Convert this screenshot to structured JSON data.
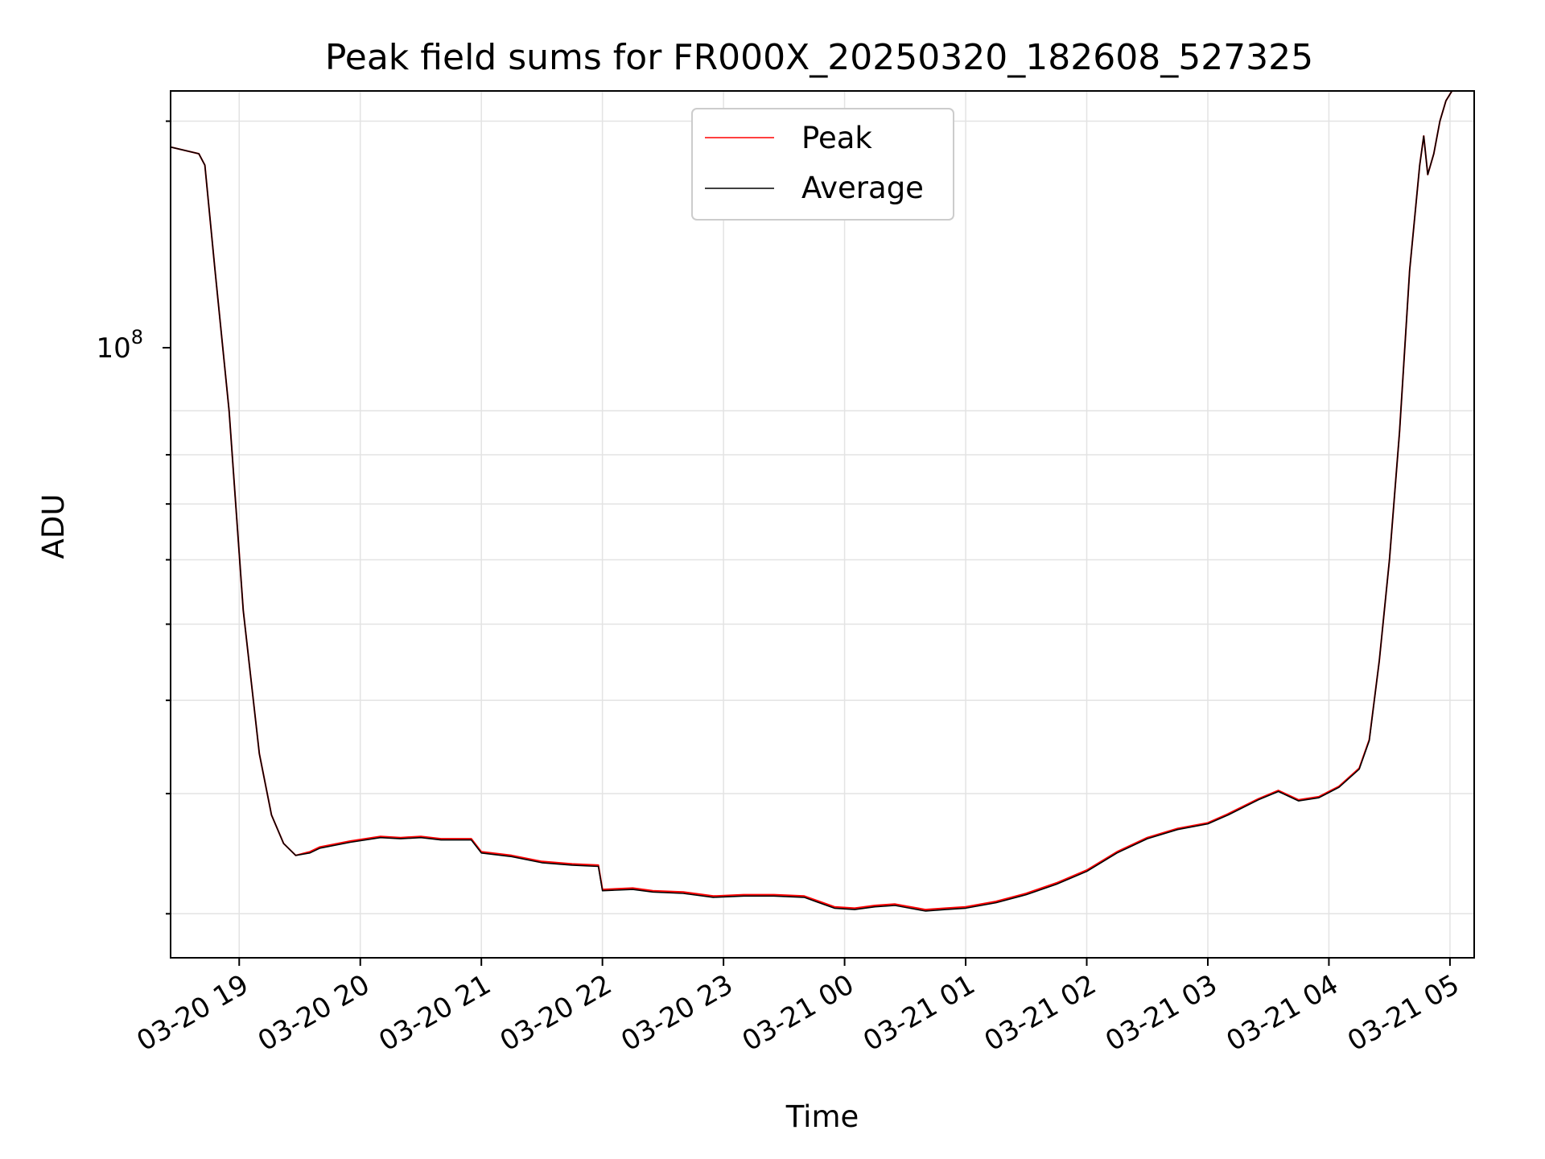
{
  "chart_data": {
    "type": "line",
    "title": "Peak field sums for FR000X_20250320_182608_527325",
    "xlabel": "Time",
    "ylabel": "ADU",
    "y_scale": "log",
    "y_tick_label": {
      "base": "10",
      "exponent": "8",
      "value": 100000000
    },
    "ylim": [
      27000000,
      215000000
    ],
    "xlim": [
      "2025-03-20 18:26",
      "2025-03-21 05:12"
    ],
    "x_tick_labels": [
      "03-20 19",
      "03-20 20",
      "03-20 21",
      "03-20 22",
      "03-20 23",
      "03-21 00",
      "03-21 01",
      "03-21 02",
      "03-21 03",
      "03-21 04",
      "03-21 05"
    ],
    "x_ticks": [
      "2025-03-20 19:00",
      "2025-03-20 20:00",
      "2025-03-20 21:00",
      "2025-03-20 22:00",
      "2025-03-20 23:00",
      "2025-03-21 00:00",
      "2025-03-21 01:00",
      "2025-03-21 02:00",
      "2025-03-21 03:00",
      "2025-03-21 04:00",
      "2025-03-21 05:00"
    ],
    "grid": true,
    "legend": {
      "placement": "top-center"
    },
    "series": [
      {
        "name": "Peak",
        "color": "#ff0000",
        "x": [
          "2025-03-20 18:26",
          "2025-03-20 18:40",
          "2025-03-20 18:43",
          "2025-03-20 18:48",
          "2025-03-20 18:55",
          "2025-03-20 19:02",
          "2025-03-20 19:10",
          "2025-03-20 19:16",
          "2025-03-20 19:22",
          "2025-03-20 19:28",
          "2025-03-20 19:35",
          "2025-03-20 19:40",
          "2025-03-20 19:55",
          "2025-03-20 20:10",
          "2025-03-20 20:20",
          "2025-03-20 20:30",
          "2025-03-20 20:40",
          "2025-03-20 20:55",
          "2025-03-20 21:00",
          "2025-03-20 21:15",
          "2025-03-20 21:30",
          "2025-03-20 21:45",
          "2025-03-20 21:58",
          "2025-03-20 22:00",
          "2025-03-20 22:15",
          "2025-03-20 22:25",
          "2025-03-20 22:40",
          "2025-03-20 22:55",
          "2025-03-20 23:10",
          "2025-03-20 23:25",
          "2025-03-20 23:40",
          "2025-03-20 23:55",
          "2025-03-21 00:05",
          "2025-03-21 00:15",
          "2025-03-21 00:25",
          "2025-03-21 00:40",
          "2025-03-21 00:50",
          "2025-03-21 01:00",
          "2025-03-21 01:15",
          "2025-03-21 01:30",
          "2025-03-21 01:45",
          "2025-03-21 02:00",
          "2025-03-21 02:15",
          "2025-03-21 02:30",
          "2025-03-21 02:45",
          "2025-03-21 03:00",
          "2025-03-21 03:10",
          "2025-03-21 03:25",
          "2025-03-21 03:35",
          "2025-03-21 03:45",
          "2025-03-21 03:55",
          "2025-03-21 04:05",
          "2025-03-21 04:15",
          "2025-03-21 04:20",
          "2025-03-21 04:25",
          "2025-03-21 04:30",
          "2025-03-21 04:35",
          "2025-03-21 04:40",
          "2025-03-21 04:45",
          "2025-03-21 04:47",
          "2025-03-21 04:49",
          "2025-03-21 04:52",
          "2025-03-21 04:55",
          "2025-03-21 04:58",
          "2025-03-21 05:01"
        ],
        "values": [
          188000000,
          185000000,
          180000000,
          140000000,
          100000000,
          62000000,
          44000000,
          38000000,
          35500000,
          34500000,
          34800000,
          35200000,
          35700000,
          36100000,
          36000000,
          36100000,
          35900000,
          35900000,
          34800000,
          34500000,
          34000000,
          33800000,
          33700000,
          31800000,
          31900000,
          31700000,
          31600000,
          31300000,
          31400000,
          31400000,
          31300000,
          30500000,
          30400000,
          30600000,
          30700000,
          30300000,
          30400000,
          30500000,
          30900000,
          31500000,
          32300000,
          33300000,
          34800000,
          36000000,
          36800000,
          37300000,
          38100000,
          39500000,
          40300000,
          39400000,
          39700000,
          40700000,
          42500000,
          45500000,
          55000000,
          70000000,
          95000000,
          140000000,
          180000000,
          193000000,
          176000000,
          185000000,
          200000000,
          210000000,
          215000000
        ]
      },
      {
        "name": "Average",
        "color": "#000000",
        "x": [
          "2025-03-20 18:26",
          "2025-03-20 18:40",
          "2025-03-20 18:43",
          "2025-03-20 18:48",
          "2025-03-20 18:55",
          "2025-03-20 19:02",
          "2025-03-20 19:10",
          "2025-03-20 19:16",
          "2025-03-20 19:22",
          "2025-03-20 19:28",
          "2025-03-20 19:35",
          "2025-03-20 19:40",
          "2025-03-20 19:55",
          "2025-03-20 20:10",
          "2025-03-20 20:20",
          "2025-03-20 20:30",
          "2025-03-20 20:40",
          "2025-03-20 20:55",
          "2025-03-20 21:00",
          "2025-03-20 21:15",
          "2025-03-20 21:30",
          "2025-03-20 21:45",
          "2025-03-20 21:58",
          "2025-03-20 22:00",
          "2025-03-20 22:15",
          "2025-03-20 22:25",
          "2025-03-20 22:40",
          "2025-03-20 22:55",
          "2025-03-20 23:10",
          "2025-03-20 23:25",
          "2025-03-20 23:40",
          "2025-03-20 23:55",
          "2025-03-21 00:05",
          "2025-03-21 00:15",
          "2025-03-21 00:25",
          "2025-03-21 00:40",
          "2025-03-21 00:50",
          "2025-03-21 01:00",
          "2025-03-21 01:15",
          "2025-03-21 01:30",
          "2025-03-21 01:45",
          "2025-03-21 02:00",
          "2025-03-21 02:15",
          "2025-03-21 02:30",
          "2025-03-21 02:45",
          "2025-03-21 03:00",
          "2025-03-21 03:10",
          "2025-03-21 03:25",
          "2025-03-21 03:35",
          "2025-03-21 03:45",
          "2025-03-21 03:55",
          "2025-03-21 04:05",
          "2025-03-21 04:15",
          "2025-03-21 04:20",
          "2025-03-21 04:25",
          "2025-03-21 04:30",
          "2025-03-21 04:35",
          "2025-03-21 04:40",
          "2025-03-21 04:45",
          "2025-03-21 04:47",
          "2025-03-21 04:49",
          "2025-03-21 04:52",
          "2025-03-21 04:55",
          "2025-03-21 04:58",
          "2025-03-21 05:01"
        ],
        "values": [
          188000000,
          185000000,
          180000000,
          140000000,
          100000000,
          62000000,
          44000000,
          38000000,
          35500000,
          34500000,
          34700000,
          35100000,
          35600000,
          36000000,
          35900000,
          36000000,
          35800000,
          35800000,
          34700000,
          34400000,
          33900000,
          33700000,
          33600000,
          31700000,
          31800000,
          31600000,
          31500000,
          31200000,
          31300000,
          31300000,
          31200000,
          30400000,
          30300000,
          30500000,
          30600000,
          30200000,
          30300000,
          30400000,
          30800000,
          31400000,
          32200000,
          33200000,
          34700000,
          35900000,
          36700000,
          37200000,
          38000000,
          39400000,
          40200000,
          39300000,
          39600000,
          40600000,
          42400000,
          45400000,
          55000000,
          70000000,
          95000000,
          140000000,
          180000000,
          193000000,
          176000000,
          185000000,
          200000000,
          210000000,
          215000000
        ]
      }
    ]
  }
}
